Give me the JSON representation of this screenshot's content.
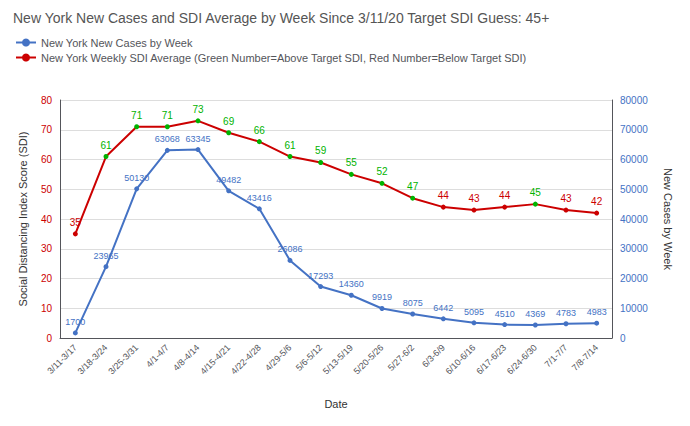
{
  "chart_data": {
    "type": "line",
    "title": "New York New Cases and SDI Average by Week Since 3/11/20 Target SDI Guess: 45+",
    "xlabel": "Date",
    "ylabel": "Social Distancing Index Score (SDI)",
    "y2label": "New Cases by Week",
    "categories": [
      "3/11-3/17",
      "3/18-3/24",
      "3/25-3/31",
      "4/1-4/7",
      "4/8-4/14",
      "4/15-4/21",
      "4/22-4/28",
      "4/29-5/6",
      "5/6-5/12",
      "5/13-5/19",
      "5/20-5/26",
      "5/27-6/2",
      "6/3-6/9",
      "6/10-6/16",
      "6/17-6/23",
      "6/24-6/30",
      "7/1-7/7",
      "7/8-7/14"
    ],
    "series": [
      {
        "name": "New York New Cases by Week",
        "color": "#4472c4",
        "axis": "y2",
        "marker": "circle",
        "values": [
          1700,
          23965,
          50130,
          63068,
          63345,
          49482,
          43416,
          26086,
          17293,
          14360,
          9919,
          8075,
          6442,
          5095,
          4510,
          4369,
          4783,
          4983
        ]
      },
      {
        "name": "New York Weekly SDI Average (Green Number=Above Target SDI, Red Number=Below Target SDI)",
        "color": "#cc0000",
        "marker": "circle",
        "values": [
          35,
          61,
          71,
          71,
          73,
          69,
          66,
          61,
          59,
          55,
          52,
          47,
          44,
          43,
          44,
          45,
          43,
          42
        ],
        "colors": [
          "#cc0000",
          "#00b300",
          "#00b300",
          "#00b300",
          "#00b300",
          "#00b300",
          "#00b300",
          "#00b300",
          "#00b300",
          "#00b300",
          "#00b300",
          "#00b300",
          "#cc0000",
          "#cc0000",
          "#cc0000",
          "#00b300",
          "#cc0000",
          "#cc0000"
        ]
      }
    ],
    "ylim": [
      0,
      80
    ],
    "yticks": [
      0,
      10,
      20,
      30,
      40,
      50,
      60,
      70,
      80
    ],
    "y2lim": [
      0,
      80000
    ],
    "y2ticks": [
      0,
      10000,
      20000,
      30000,
      40000,
      50000,
      60000,
      70000,
      80000
    ],
    "grid": true,
    "legend": "upper left",
    "data_labels": true
  }
}
